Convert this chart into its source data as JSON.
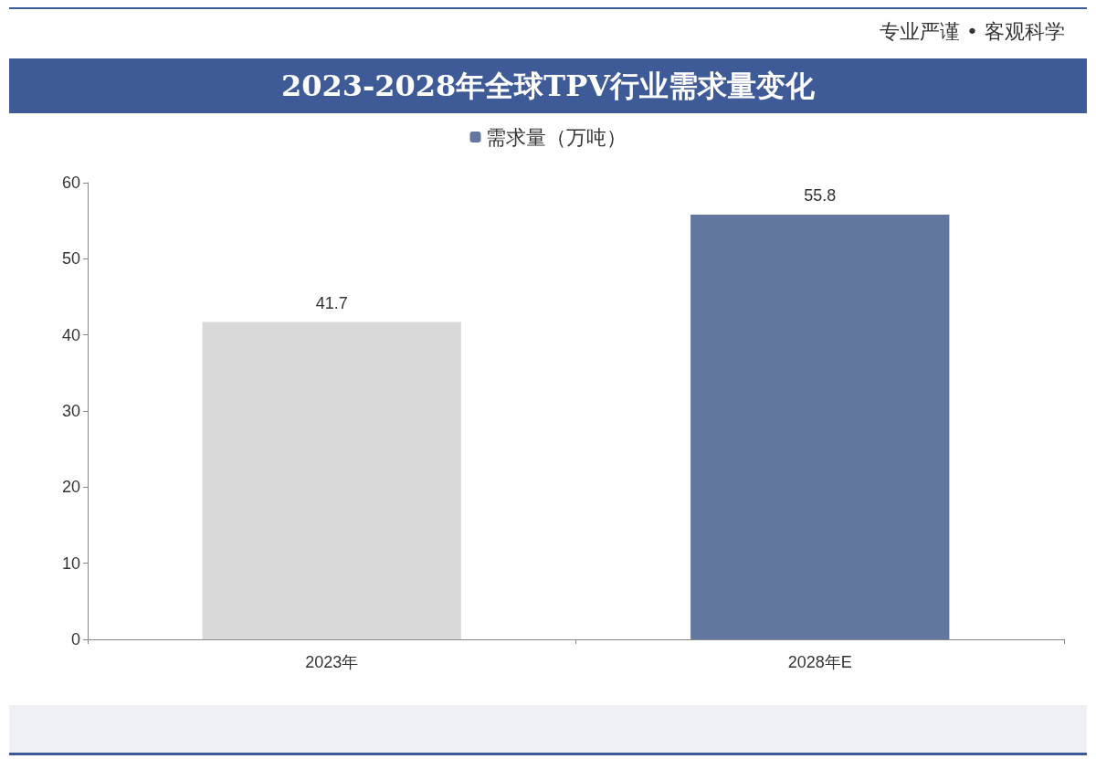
{
  "chart_data": {
    "type": "bar",
    "title": "2023-2028年全球TPV行业需求量变化",
    "annotations": [
      "专业严谨 • 客观科学"
    ],
    "categories": [
      "2023年",
      "2028年E"
    ],
    "series": [
      {
        "name": "需求量（万吨）",
        "colors": [
          "#d9d9d9",
          "#61779f"
        ],
        "values": [
          41.7,
          55.8
        ]
      }
    ],
    "ylim": [
      0,
      60
    ],
    "yticks": [
      0,
      10,
      20,
      30,
      40,
      50,
      60
    ],
    "grid": false,
    "legend": "top",
    "data_labels": true
  }
}
